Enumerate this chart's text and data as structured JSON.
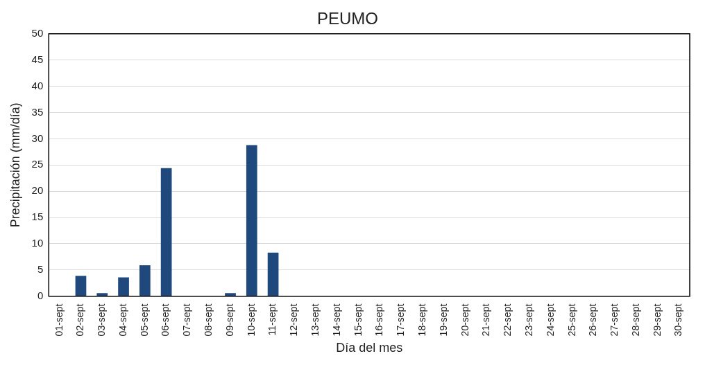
{
  "chart_data": {
    "type": "bar",
    "title": "PEUMO",
    "xlabel": "Día del mes",
    "ylabel": "Precipitación (mm/día)",
    "categories": [
      "01-sept",
      "02-sept",
      "03-sept",
      "04-sept",
      "05-sept",
      "06-sept",
      "07-sept",
      "08-sept",
      "09-sept",
      "10-sept",
      "11-sept",
      "12-sept",
      "13-sept",
      "14-sept",
      "15-sept",
      "16-sept",
      "17-sept",
      "18-sept",
      "19-sept",
      "20-sept",
      "21-sept",
      "22-sept",
      "23-sept",
      "24-sept",
      "25-sept",
      "26-sept",
      "27-sept",
      "28-sept",
      "29-sept",
      "30-sept"
    ],
    "values": [
      0,
      3.9,
      0.6,
      3.6,
      5.9,
      24.4,
      0,
      0,
      0.6,
      28.8,
      8.3,
      0,
      0,
      0,
      0,
      0,
      0,
      0,
      0,
      0,
      0,
      0,
      0,
      0,
      0,
      0,
      0,
      0,
      0,
      0
    ],
    "color": "#1f497d",
    "ylim": [
      0,
      50
    ],
    "yticks": [
      0,
      5,
      10,
      15,
      20,
      25,
      30,
      35,
      40,
      45,
      50
    ],
    "grid": "y",
    "legend": false
  }
}
